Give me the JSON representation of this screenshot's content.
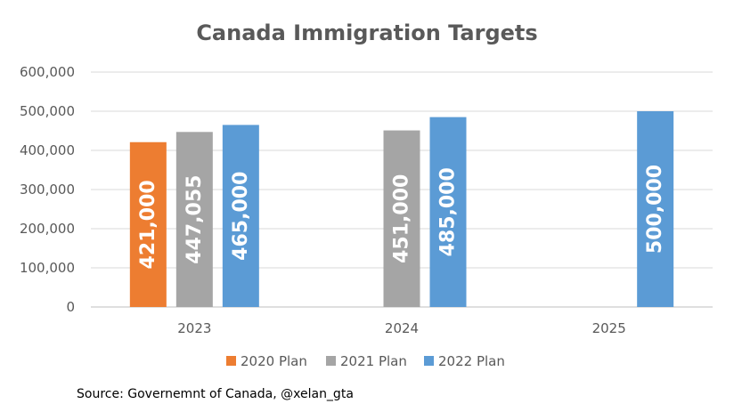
{
  "chart_data": {
    "type": "bar",
    "title": "Canada Immigration Targets",
    "categories": [
      "2023",
      "2024",
      "2025"
    ],
    "series": [
      {
        "name": "2020 Plan",
        "color": "#ED7D31",
        "values": [
          421000,
          null,
          null
        ],
        "labels": [
          "421,000",
          null,
          null
        ]
      },
      {
        "name": "2021 Plan",
        "color": "#A5A5A5",
        "values": [
          447055,
          451000,
          null
        ],
        "labels": [
          "447,055",
          "451,000",
          null
        ]
      },
      {
        "name": "2022 Plan",
        "color": "#5B9BD5",
        "values": [
          465000,
          485000,
          500000
        ],
        "labels": [
          "465,000",
          "485,000",
          "500,000"
        ]
      }
    ],
    "yticks": [
      "0",
      "100,000",
      "200,000",
      "300,000",
      "400,000",
      "500,000",
      "600,000"
    ],
    "ylim": [
      0,
      600000
    ],
    "grid": true,
    "legend_position": "bottom"
  },
  "source": "Source: Governemnt of Canada, @xelan_gta"
}
